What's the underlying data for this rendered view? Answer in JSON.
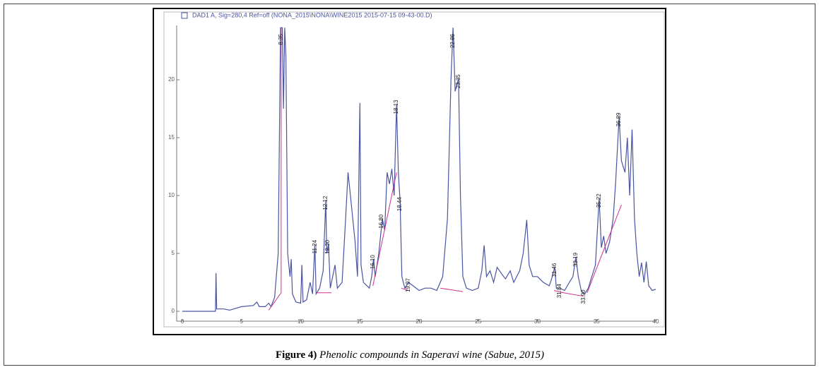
{
  "chart_data": {
    "type": "line",
    "legend": "DAD1 A, Sig=280,4 Ref=off (NONA_2015\\NONA\\WINE2015 2015-07-15 09-43-00.D)",
    "caption_label": "Figure 4)",
    "caption_text": "Phenolic compounds in Saperavi wine (Sabue, 2015)",
    "xlim": [
      0,
      40
    ],
    "xticks": [
      0,
      5,
      10,
      15,
      20,
      25,
      30,
      35,
      40
    ],
    "ylim": [
      0,
      24.6
    ],
    "yticks": [
      0,
      5,
      10,
      15,
      20
    ],
    "series": [
      {
        "color": "#4a55a2",
        "x": [
          0,
          2.8,
          2.85,
          2.9,
          3.5,
          4,
          5,
          6,
          6.3,
          6.5,
          7,
          7.3,
          7.5,
          7.8,
          8.1,
          8.3,
          8.45,
          8.55,
          8.65,
          8.75,
          8.9,
          9.1,
          9.2,
          9.3,
          9.6,
          10,
          10.1,
          10.2,
          10.5,
          10.8,
          11,
          11.2,
          11.3,
          11.6,
          11.9,
          12.12,
          12.2,
          12.35,
          12.5,
          12.9,
          13.1,
          13.5,
          13.8,
          14,
          14.2,
          14.4,
          14.6,
          14.8,
          15,
          15.1,
          15.3,
          15.8,
          16,
          16.15,
          16.3,
          16.6,
          16.9,
          17.1,
          17.3,
          17.5,
          17.7,
          17.9,
          18.1,
          18.25,
          18.4,
          18.55,
          18.8,
          19.1,
          19.5,
          20,
          20.5,
          21,
          21.5,
          22,
          22.4,
          22.7,
          22.87,
          23.05,
          23.34,
          23.5,
          23.7,
          24,
          24.5,
          25,
          25.3,
          25.5,
          25.7,
          26,
          26.3,
          26.6,
          27,
          27.3,
          27.7,
          28,
          28.5,
          28.8,
          29.1,
          29.3,
          29.6,
          30,
          30.5,
          31,
          31.2,
          31.46,
          31.6,
          31.9,
          32.3,
          32.7,
          33,
          33.25,
          33.45,
          33.7,
          34,
          34.3,
          34.6,
          34.9,
          35.22,
          35.4,
          35.6,
          35.8,
          36.1,
          36.4,
          36.6,
          36.9,
          37.1,
          37.4,
          37.6,
          37.8,
          38,
          38.2,
          38.4,
          38.6,
          38.8,
          39,
          39.2,
          39.4,
          39.7,
          40
        ],
        "values": [
          0,
          0,
          3.3,
          0.2,
          0.2,
          0.1,
          0.4,
          0.5,
          0.8,
          0.4,
          0.4,
          0.7,
          0.4,
          1.2,
          5,
          24.5,
          24.5,
          17.5,
          24.5,
          22,
          5,
          3,
          4.5,
          1.5,
          0.8,
          0.7,
          4,
          0.8,
          1,
          2.5,
          1.5,
          5.8,
          1.5,
          2,
          3.5,
          9.6,
          5,
          5.8,
          2,
          4,
          2,
          2.5,
          8,
          12,
          10,
          8,
          6,
          3,
          18,
          4,
          2.5,
          2,
          3,
          4.5,
          3,
          5,
          8,
          7,
          12,
          11,
          12.3,
          10,
          17.9,
          12,
          9.5,
          3,
          2,
          2.5,
          2.2,
          1.8,
          2,
          2,
          1.8,
          3,
          8,
          20,
          24.5,
          19,
          20.1,
          10,
          3,
          2,
          1.8,
          2,
          3.5,
          5.7,
          3,
          3.5,
          2.5,
          3.8,
          3.2,
          2.8,
          3.5,
          2.5,
          3.5,
          5,
          7.9,
          4,
          3,
          3,
          2.5,
          2.2,
          2.8,
          3.8,
          2,
          2,
          1.8,
          2.5,
          3,
          4.7,
          3,
          1.8,
          1.5,
          2,
          3,
          4,
          9.8,
          5.5,
          6.5,
          5,
          6,
          8,
          11,
          16.8,
          13,
          12,
          15,
          10,
          15.7,
          8,
          5,
          3,
          4.2,
          2.5,
          4.3,
          2.2,
          1.8,
          1.9
        ]
      }
    ],
    "baseline_color": "#d0308a",
    "baselines": [
      [
        7.3,
        0.1,
        8.35,
        1.6
      ],
      [
        8.35,
        1.6,
        8.35,
        24.5
      ],
      [
        11.3,
        1.6,
        12.6,
        1.6
      ],
      [
        16.1,
        2.2,
        18.1,
        12
      ],
      [
        18.5,
        2,
        19.1,
        1.8
      ],
      [
        21.8,
        2,
        23.7,
        1.7
      ],
      [
        31.4,
        1.8,
        32.2,
        1.6
      ],
      [
        32.2,
        1.6,
        33.9,
        1.3
      ],
      [
        34.2,
        1.6,
        35.3,
        4.5
      ],
      [
        35.3,
        4.5,
        37.1,
        9.2
      ]
    ],
    "annotations": [
      {
        "x": 8.36,
        "y": 24.5,
        "label": "8.35"
      },
      {
        "x": 11.22,
        "y": 5.8,
        "label": "11.24"
      },
      {
        "x": 12.12,
        "y": 9.6,
        "label": "12.12"
      },
      {
        "x": 12.3,
        "y": 5.8,
        "label": "12.30"
      },
      {
        "x": 16.12,
        "y": 4.5,
        "label": "16.10"
      },
      {
        "x": 16.84,
        "y": 8,
        "label": "16.80"
      },
      {
        "x": 18.09,
        "y": 17.9,
        "label": "18.13"
      },
      {
        "x": 18.39,
        "y": 9.5,
        "label": "18.44"
      },
      {
        "x": 19.1,
        "y": 2.5,
        "label": "19.07"
      },
      {
        "x": 22.87,
        "y": 24.5,
        "label": "22.86"
      },
      {
        "x": 23.34,
        "y": 20.1,
        "label": "23.35"
      },
      {
        "x": 31.46,
        "y": 3.8,
        "label": "31.46"
      },
      {
        "x": 31.88,
        "y": 2,
        "label": "31.84"
      },
      {
        "x": 33.25,
        "y": 4.7,
        "label": "33.19"
      },
      {
        "x": 33.9,
        "y": 1.5,
        "label": "33.90"
      },
      {
        "x": 35.22,
        "y": 9.8,
        "label": "35.22"
      },
      {
        "x": 36.9,
        "y": 16.8,
        "label": "36.89"
      }
    ]
  }
}
